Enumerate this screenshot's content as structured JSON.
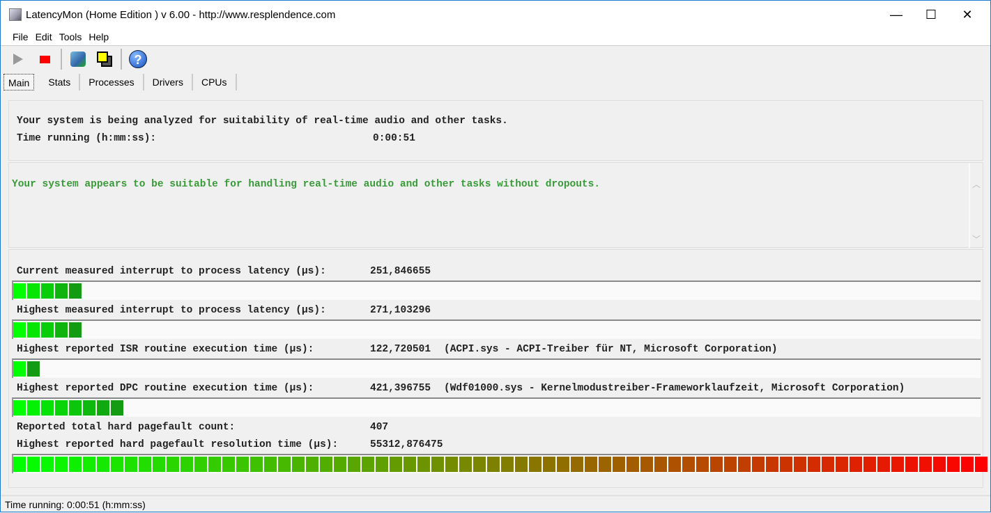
{
  "window": {
    "title": "LatencyMon  (Home Edition )  v 6.00 - http://www.resplendence.com",
    "minimize": "—",
    "maximize": "☐",
    "close": "✕"
  },
  "menu": [
    "File",
    "Edit",
    "Tools",
    "Help"
  ],
  "toolbar": {
    "icons": [
      "play-icon",
      "stop-icon",
      "system-analyze-icon",
      "windows-icon",
      "help-icon"
    ],
    "help_glyph": "?"
  },
  "tabs": [
    "Main",
    "Stats",
    "Processes",
    "Drivers",
    "CPUs"
  ],
  "status_panel": {
    "line1": "Your system is being analyzed for suitability of real-time audio and other tasks.",
    "time_label": "Time running (h:mm:ss):",
    "time_value": "0:00:51"
  },
  "conclusion": {
    "text": "Your system appears to be suitable for handling real-time audio and other tasks without dropouts.",
    "color": "#3a9a3a"
  },
  "metrics": [
    {
      "label": "Current measured interrupt to process latency (µs):",
      "value": "251,846655",
      "detail": "",
      "level": 0.07
    },
    {
      "label": "Highest measured interrupt to process latency (µs):",
      "value": "271,103296",
      "detail": "",
      "level": 0.07
    },
    {
      "label": "Highest reported ISR routine execution time (µs):",
      "value": "122,720501",
      "detail": "(ACPI.sys - ACPI-Treiber für NT, Microsoft Corporation)",
      "level": 0.03
    },
    {
      "label": "Highest reported DPC routine execution time (µs):",
      "value": "421,396755",
      "detail": "(Wdf01000.sys - Kernelmodustreiber-Frameworklaufzeit, Microsoft Corporation)",
      "level": 0.115
    },
    {
      "label": "Reported total hard pagefault count:",
      "value": "407"
    },
    {
      "label": "Highest reported hard pagefault resolution time (µs):",
      "value": "55312,876475",
      "level": 1.0
    }
  ],
  "statusbar": {
    "text": "Time running: 0:00:51  (h:mm:ss)"
  }
}
